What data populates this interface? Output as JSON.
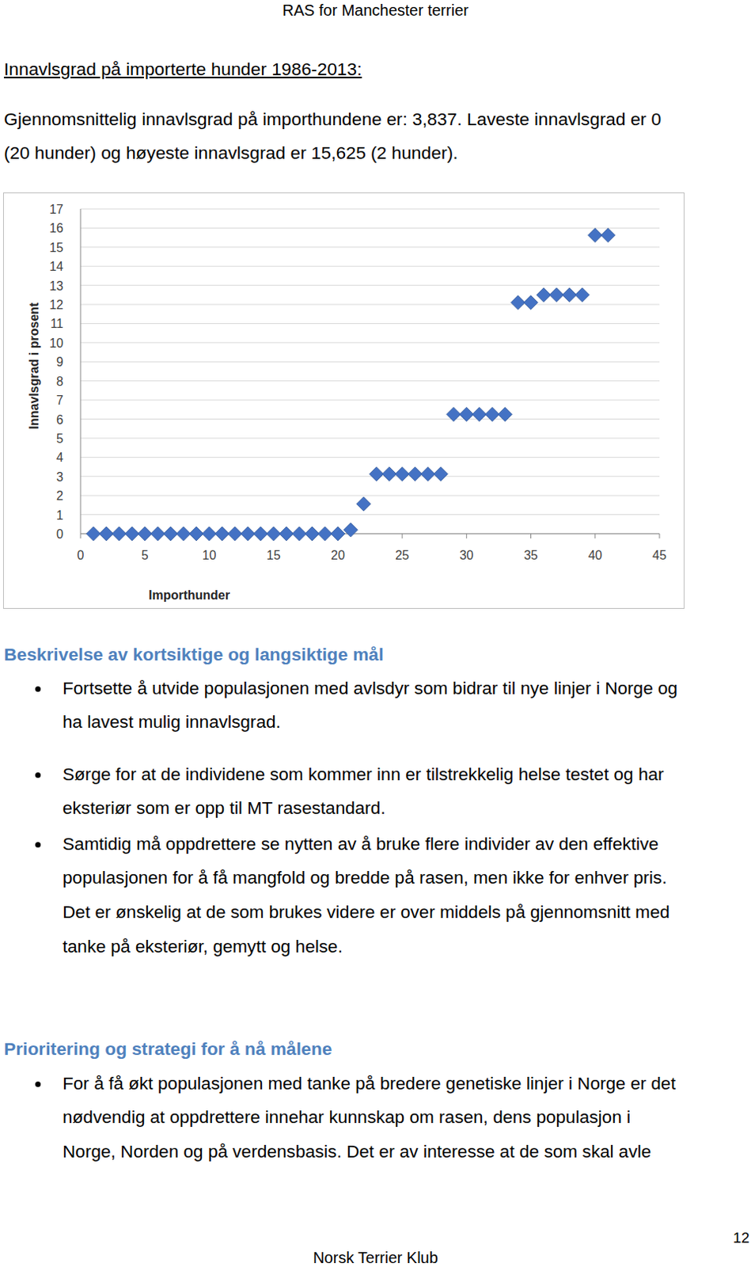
{
  "header": {
    "title": "RAS for Manchester terrier"
  },
  "section_title": "Innavlsgrad på importerte hunder 1986-2013:",
  "intro": [
    "Gjennomsnittelig innavlsgrad på importhundene er: 3,837. Laveste innavlsgrad er 0",
    "(20 hunder) og høyeste innavlsgrad er 15,625 (2 hunder)."
  ],
  "chart_data": {
    "type": "scatter",
    "x_label": "Importhunder",
    "y_label": "Innavlsgrad i prosent",
    "x": [
      1,
      2,
      3,
      4,
      5,
      6,
      7,
      8,
      9,
      10,
      11,
      12,
      13,
      14,
      15,
      16,
      17,
      18,
      19,
      20,
      21,
      22,
      23,
      24,
      25,
      26,
      27,
      28,
      29,
      30,
      31,
      32,
      33,
      34,
      35,
      36,
      37,
      38,
      39,
      40,
      41
    ],
    "values": [
      0,
      0,
      0,
      0,
      0,
      0,
      0,
      0,
      0,
      0,
      0,
      0,
      0,
      0,
      0,
      0,
      0,
      0,
      0,
      0,
      0.2,
      1.56,
      3.125,
      3.125,
      3.125,
      3.125,
      3.125,
      3.125,
      6.25,
      6.25,
      6.25,
      6.25,
      6.25,
      12.1,
      12.1,
      12.5,
      12.5,
      12.5,
      12.5,
      15.625,
      15.625
    ],
    "color": "#4472c4",
    "marker": "diamond",
    "xlim": [
      0,
      45
    ],
    "xticks": [
      0,
      5,
      10,
      15,
      20,
      25,
      30,
      35,
      40,
      45
    ],
    "ylim": [
      0,
      17
    ],
    "yticks": [
      0,
      1,
      2,
      3,
      4,
      5,
      6,
      7,
      8,
      9,
      10,
      11,
      12,
      13,
      14,
      15,
      16,
      17
    ],
    "grid": true
  },
  "sections": [
    {
      "heading": "Beskrivelse av kortsiktige og langsiktige mål",
      "bullets": [
        [
          "Fortsette å utvide populasjonen med avlsdyr som bidrar til nye linjer i Norge og",
          "ha lavest mulig innavlsgrad."
        ],
        [
          "Sørge for at de individene som kommer inn er tilstrekkelig helse testet og har",
          "eksteriør som er opp til MT rasestandard."
        ],
        [
          "Samtidig må oppdrettere se nytten av å bruke flere individer av den effektive",
          "populasjonen for å få mangfold og bredde på rasen, men ikke for enhver pris.",
          "Det er ønskelig at de som brukes videre er over middels på gjennomsnitt med",
          "tanke på eksteriør, gemytt og helse."
        ]
      ]
    },
    {
      "heading": "Prioritering og strategi for å nå målene",
      "bullets": [
        [
          "For å få økt populasjonen med tanke på bredere genetiske linjer i Norge er det",
          "nødvendig at oppdrettere innehar kunnskap om rasen, dens populasjon i",
          "Norge, Norden og på verdensbasis. Det er av interesse at de som skal avle"
        ]
      ]
    }
  ],
  "footer": {
    "page_number": 12,
    "text": "Norsk Terrier Klub"
  }
}
